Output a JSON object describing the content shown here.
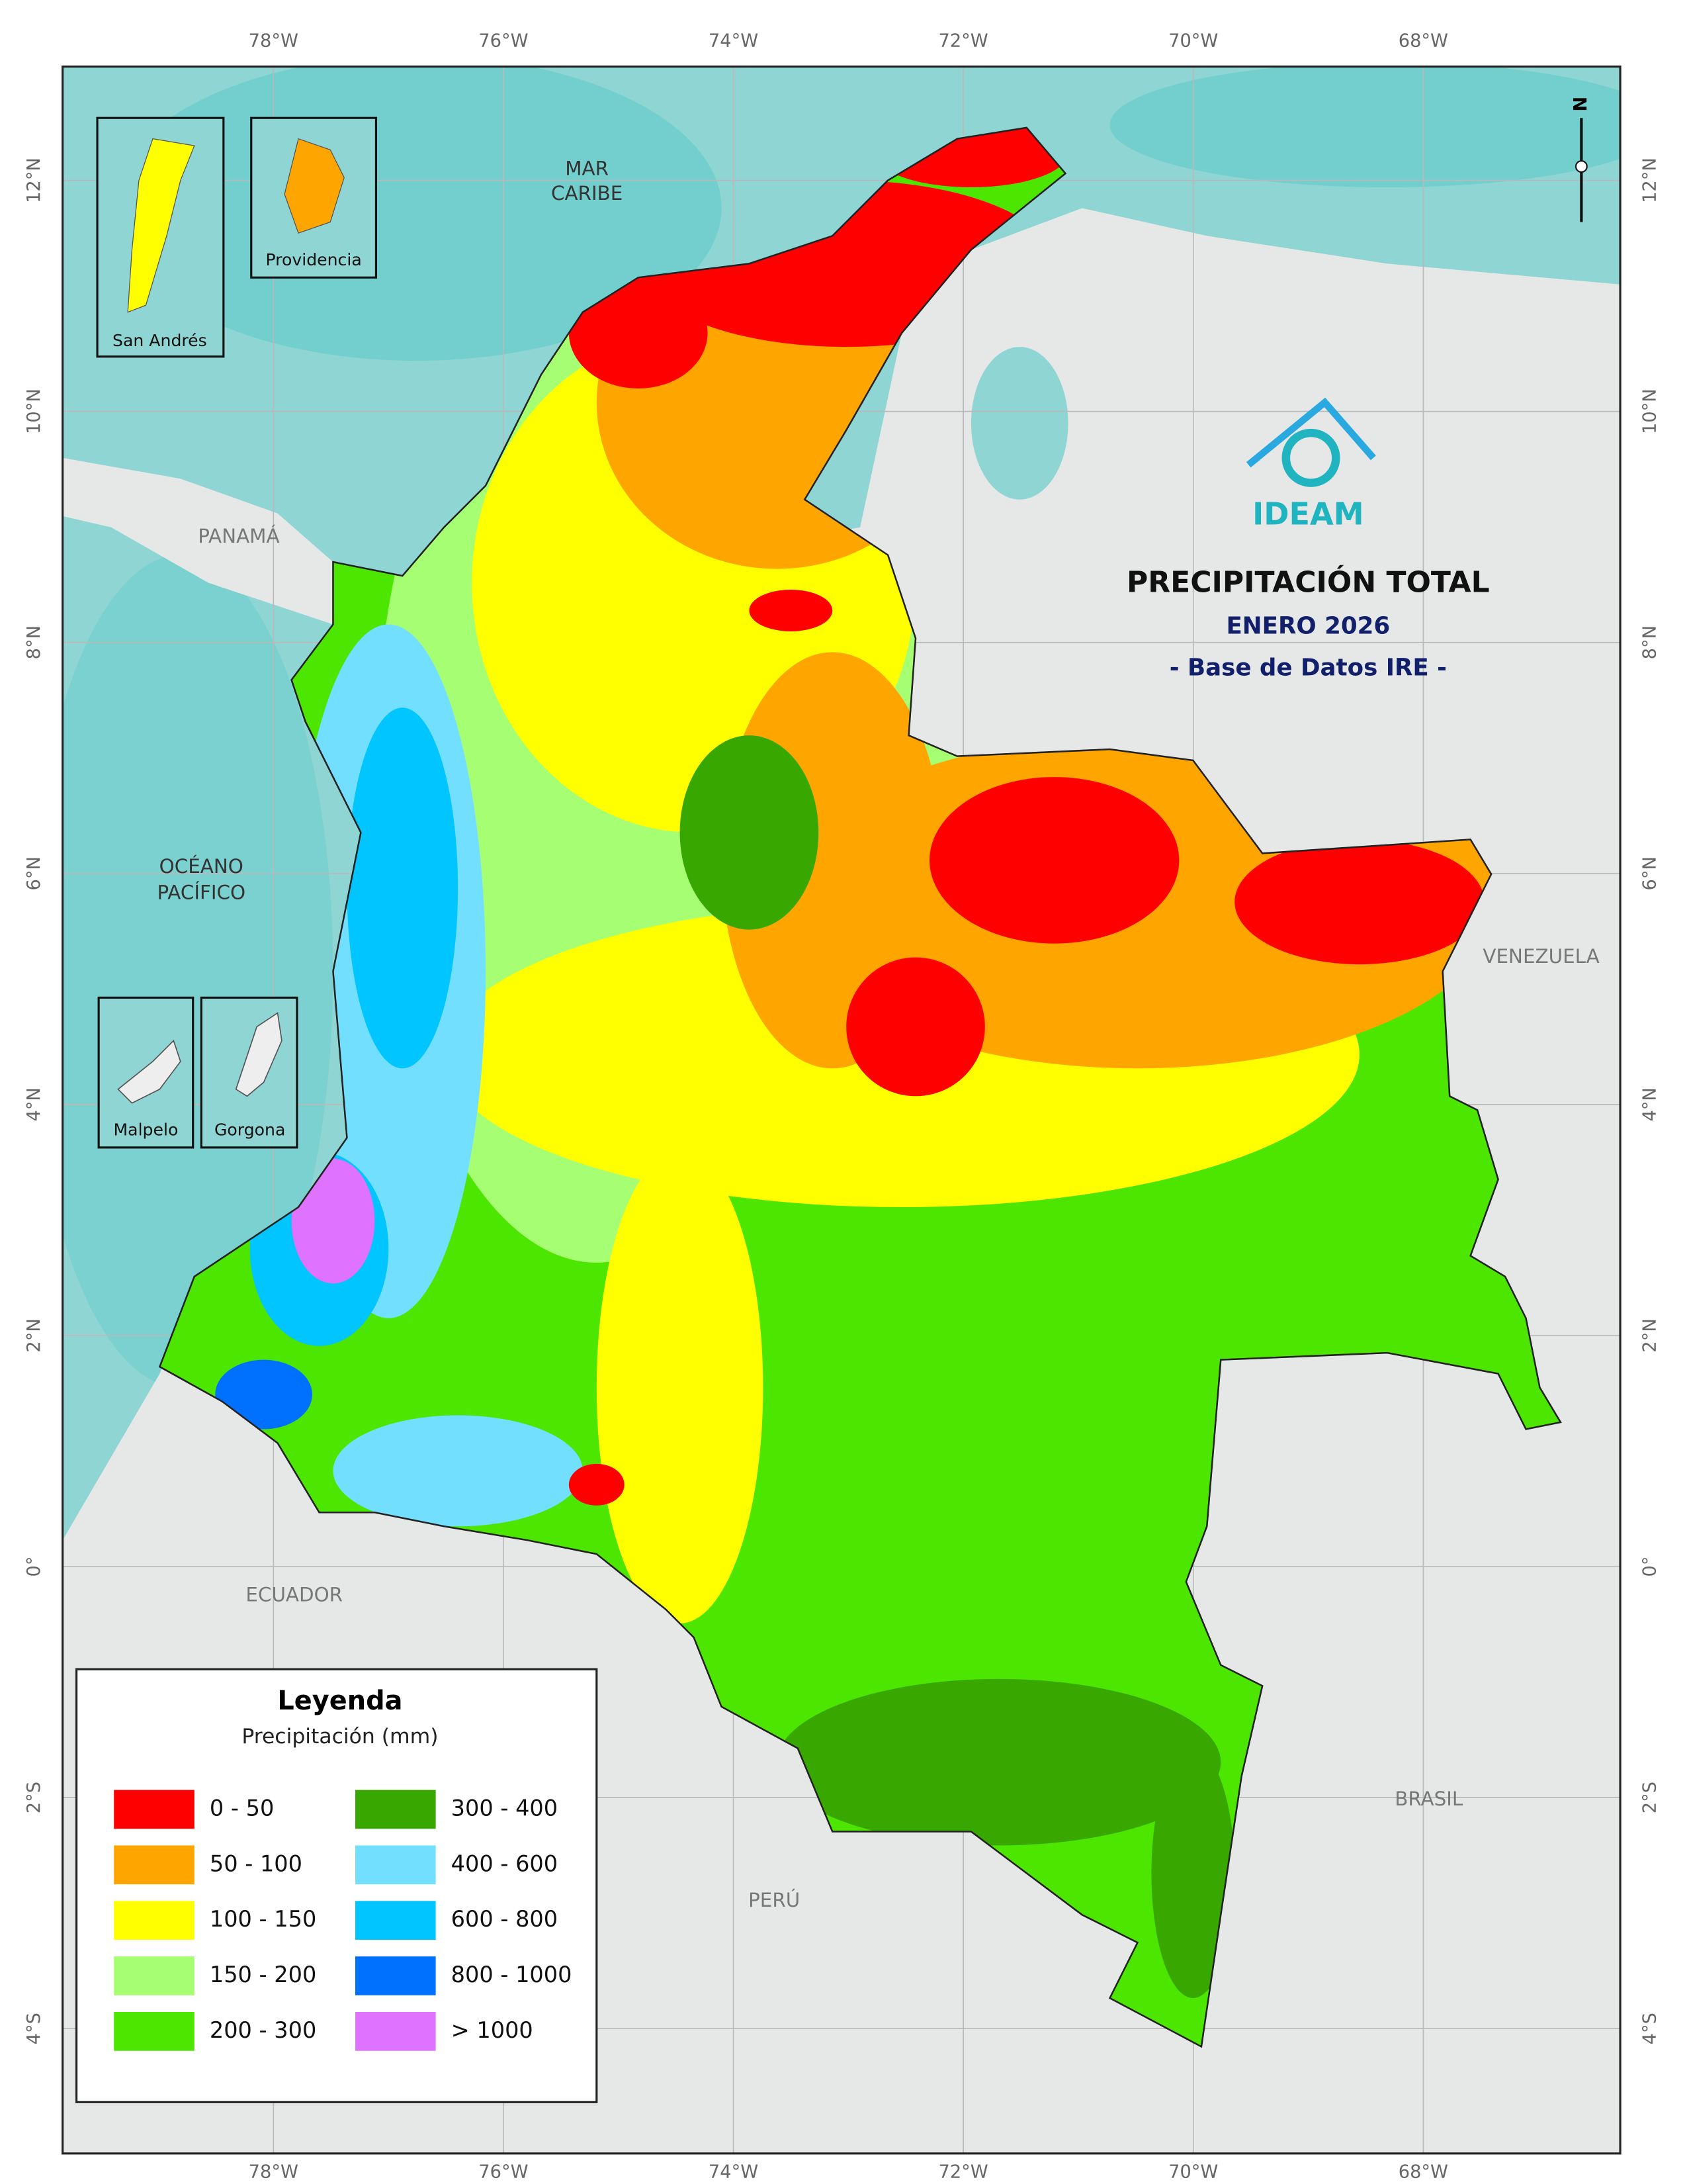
{
  "title": "PRECIPITACIÓN TOTAL",
  "period": "ENERO 2026",
  "source": "- Base de Datos IRE -",
  "logo": "IDEAM",
  "north": "N",
  "sea_labels": [
    [
      "MAR",
      "CARIBE"
    ],
    [
      "OCÉANO",
      "PACÍFICO"
    ]
  ],
  "country_labels": [
    "PANAMÁ",
    "VENEZUELA",
    "ECUADOR",
    "BRASIL",
    "PERÚ"
  ],
  "insets": [
    "San Andrés",
    "Providencia",
    "Malpelo",
    "Gorgona"
  ],
  "graticule": {
    "longitudes": [
      {
        "value": -78,
        "label": "78°W"
      },
      {
        "value": -76,
        "label": "76°W"
      },
      {
        "value": -74,
        "label": "74°W"
      },
      {
        "value": -72,
        "label": "72°W"
      },
      {
        "value": -70,
        "label": "70°W"
      },
      {
        "value": -68,
        "label": "68°W"
      }
    ],
    "latitudes": [
      {
        "value": 12,
        "label": "12°N"
      },
      {
        "value": 10,
        "label": "10°N"
      },
      {
        "value": 8,
        "label": "8°N"
      },
      {
        "value": 6,
        "label": "6°N"
      },
      {
        "value": 4,
        "label": "4°N"
      },
      {
        "value": 2,
        "label": "2°N"
      },
      {
        "value": 0,
        "label": "0°"
      },
      {
        "value": -2,
        "label": "2°S"
      },
      {
        "value": -4,
        "label": "4°S"
      }
    ]
  },
  "legend": {
    "title": "Leyenda",
    "subtitle": "Precipitación (mm)",
    "items": [
      {
        "label": "0 - 50",
        "color": "#ff0000"
      },
      {
        "label": "50 - 100",
        "color": "#ffa500"
      },
      {
        "label": "100 - 150",
        "color": "#ffff00"
      },
      {
        "label": "150 - 200",
        "color": "#a6ff73"
      },
      {
        "label": "200 - 300",
        "color": "#4ce600"
      },
      {
        "label": "300 - 400",
        "color": "#38a800"
      },
      {
        "label": "400 - 600",
        "color": "#73dfff"
      },
      {
        "label": "600 - 800",
        "color": "#00c5ff"
      },
      {
        "label": "800 - 1000",
        "color": "#0070ff"
      },
      {
        "label": "> 1000",
        "color": "#df73ff"
      }
    ]
  }
}
